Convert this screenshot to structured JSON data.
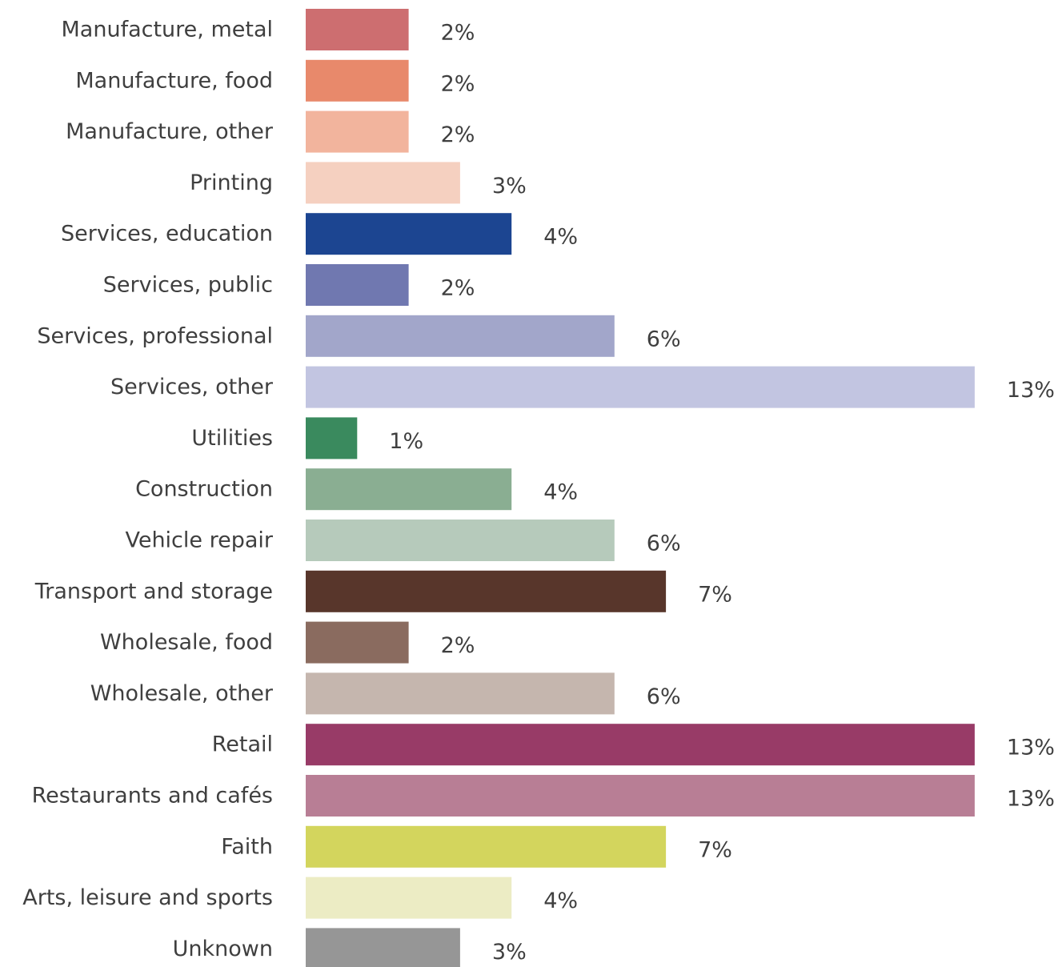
{
  "chart_data": {
    "type": "bar",
    "orientation": "horizontal",
    "categories": [
      "Manufacture, metal",
      "Manufacture, food",
      "Manufacture, other",
      "Printing",
      "Services, education",
      "Services, public",
      "Services, professional",
      "Services, other",
      "Utilities",
      "Construction",
      "Vehicle repair",
      "Transport and storage",
      "Wholesale, food",
      "Wholesale, other",
      "Retail",
      "Restaurants and cafés",
      "Faith",
      "Arts, leisure and sports",
      "Unknown"
    ],
    "values": [
      2,
      2,
      2,
      3,
      4,
      2,
      6,
      13,
      1,
      4,
      6,
      7,
      2,
      6,
      13,
      13,
      7,
      4,
      3
    ],
    "value_labels": [
      "2%",
      "2%",
      "2%",
      "3%",
      "4%",
      "2%",
      "6%",
      "13%",
      "1%",
      "4%",
      "6%",
      "7%",
      "2%",
      "6%",
      "13%",
      "13%",
      "7%",
      "4%",
      "3%"
    ],
    "colors": [
      "#cd6e70",
      "#e8896b",
      "#f2b49d",
      "#f5d0c0",
      "#1c4591",
      "#7078b0",
      "#a2a6ca",
      "#c2c5e1",
      "#3a8a5e",
      "#8aae92",
      "#b6cabb",
      "#58362b",
      "#8a6b5f",
      "#c5b6ae",
      "#983b67",
      "#b87e95",
      "#d3d55d",
      "#ececc4",
      "#969696"
    ],
    "unit": "%",
    "xlim": [
      0,
      13
    ],
    "grid": false,
    "legend": "none",
    "title": "",
    "xlabel": "",
    "ylabel": ""
  }
}
